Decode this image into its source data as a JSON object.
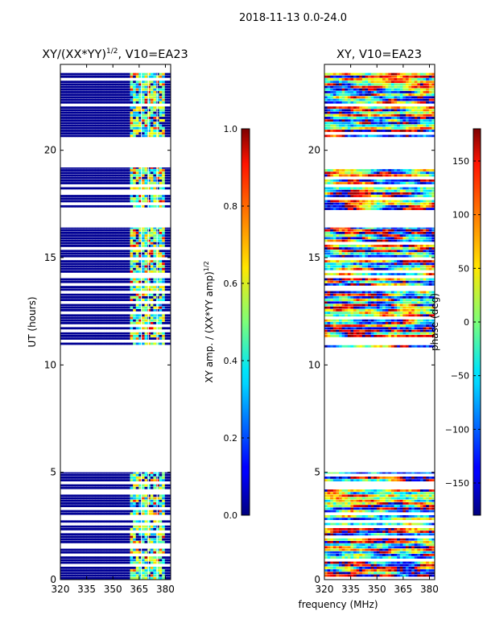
{
  "figure": {
    "suptitle": "2018-11-13 0.0-24.0",
    "shared_xlabel": "frequency (MHz)"
  },
  "chart_data": [
    {
      "type": "heatmap",
      "panel": "left",
      "title": "XY/(XX*YY)",
      "title_exponent": "1/2",
      "title_suffix": ", V10=EA23",
      "xlabel": "",
      "ylabel": "UT (hours)",
      "xlim": [
        320,
        383
      ],
      "ylim": [
        0,
        24
      ],
      "xticks": [
        "320",
        "335",
        "350",
        "365",
        "380"
      ],
      "xtick_values": [
        320,
        335,
        350,
        365,
        380
      ],
      "yticks": [
        "0",
        "5",
        "10",
        "15",
        "20"
      ],
      "ytick_values": [
        0,
        5,
        10,
        15,
        20
      ],
      "colorbar": {
        "label": "XY amp. / (XX*YY amp)",
        "label_exponent": "1/2",
        "range": [
          0.0,
          1.0
        ],
        "ticks": [
          "0.0",
          "0.2",
          "0.4",
          "0.6",
          "0.8",
          "1.0"
        ],
        "tick_values": [
          0.0,
          0.2,
          0.4,
          0.6,
          0.8,
          1.0
        ],
        "colormap": "jet"
      },
      "data_blocks_ut": [
        [
          0.0,
          5.0
        ],
        [
          10.8,
          16.4
        ],
        [
          17.2,
          19.2
        ],
        [
          20.6,
          23.6
        ]
      ],
      "active_band_mhz": [
        360,
        380
      ],
      "typical_value_outside_band": 0.0,
      "typical_value_in_band": 0.4
    },
    {
      "type": "heatmap",
      "panel": "right",
      "title": "XY, V10=EA23",
      "xlabel": "",
      "ylabel": "",
      "xlim": [
        320,
        383
      ],
      "ylim": [
        0,
        24
      ],
      "xticks": [
        "320",
        "335",
        "350",
        "365",
        "380"
      ],
      "xtick_values": [
        320,
        335,
        350,
        365,
        380
      ],
      "yticks": [
        "0",
        "5",
        "10",
        "15",
        "20"
      ],
      "ytick_values": [
        0,
        5,
        10,
        15,
        20
      ],
      "colorbar": {
        "label": "phase (deg)",
        "range": [
          -180,
          180
        ],
        "ticks": [
          "−150",
          "−100",
          "−50",
          "0",
          "50",
          "100",
          "150"
        ],
        "tick_values": [
          -150,
          -100,
          -50,
          0,
          50,
          100,
          150
        ],
        "colormap": "jet"
      },
      "data_blocks_ut": [
        [
          0.0,
          5.0
        ],
        [
          10.8,
          16.4
        ],
        [
          17.2,
          19.2
        ],
        [
          20.6,
          23.6
        ]
      ]
    }
  ]
}
